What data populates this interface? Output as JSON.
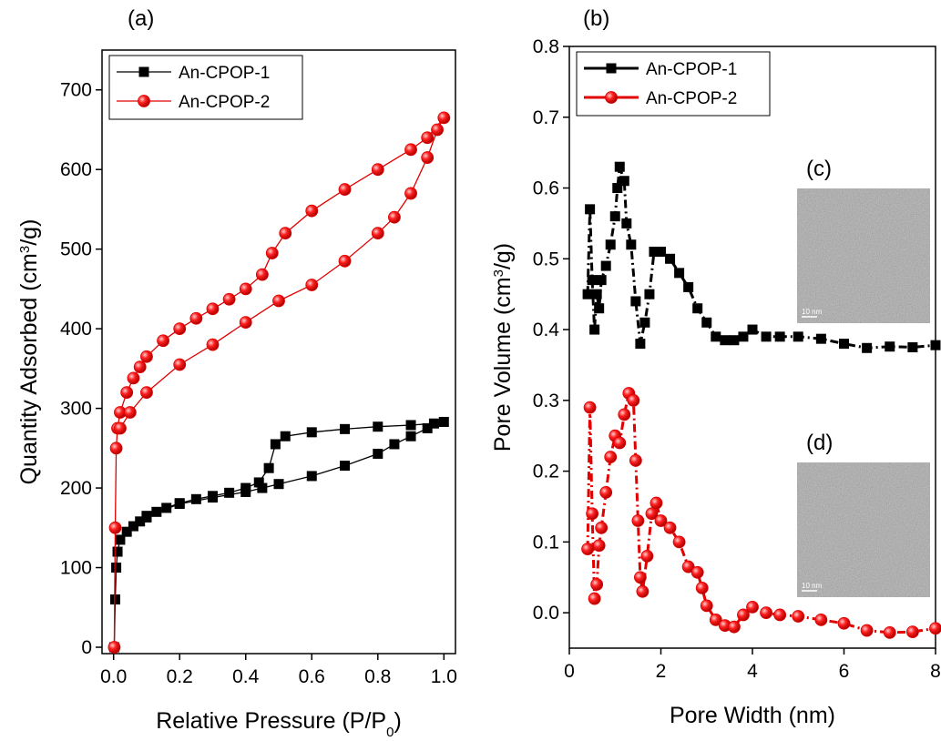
{
  "chart_data": [
    {
      "type": "line",
      "title": "(a)",
      "x_label": [
        "Relative Pressure (P/P",
        "0",
        ")"
      ],
      "y_label": [
        "Quantity Adsorbed (cm",
        "3",
        "/g)"
      ],
      "xlim": [
        -0.035,
        1.035
      ],
      "ylim": [
        -8,
        750
      ],
      "xticks": [
        {
          "value": 0,
          "label": "0.0"
        },
        0.2,
        0.4,
        0.6,
        0.8,
        {
          "value": 1,
          "label": "1.0"
        }
      ],
      "yticks": [
        0,
        100,
        200,
        300,
        400,
        500,
        600,
        700
      ],
      "legend": "upper left",
      "line_style": "solid",
      "series": [
        {
          "name": "An-CPOP-1",
          "color": "#000000",
          "marker": "square",
          "x": [
            0.002,
            0.005,
            0.008,
            0.012,
            0.02,
            0.04,
            0.06,
            0.08,
            0.1,
            0.13,
            0.16,
            0.2,
            0.25,
            0.3,
            0.35,
            0.4,
            0.44,
            0.47,
            0.49,
            0.52,
            0.6,
            0.7,
            0.8,
            0.9,
            0.97,
            1.0,
            0.95,
            0.9,
            0.85,
            0.8,
            0.7,
            0.6,
            0.5,
            0.45,
            0.4,
            0.3,
            0.2,
            0.1
          ],
          "values": [
            0,
            60,
            100,
            120,
            135,
            145,
            152,
            158,
            163,
            170,
            175,
            181,
            186,
            190,
            194,
            200,
            207,
            225,
            255,
            265,
            270,
            274,
            277,
            279,
            281,
            283,
            275,
            265,
            255,
            243,
            228,
            215,
            205,
            200,
            195,
            188,
            180,
            165
          ]
        },
        {
          "name": "An-CPOP-2",
          "color": "#e00000",
          "marker": "circle",
          "x": [
            0.002,
            0.005,
            0.008,
            0.012,
            0.02,
            0.04,
            0.06,
            0.08,
            0.1,
            0.15,
            0.2,
            0.25,
            0.3,
            0.35,
            0.4,
            0.45,
            0.48,
            0.52,
            0.6,
            0.7,
            0.8,
            0.9,
            0.95,
            1.0,
            0.98,
            0.95,
            0.9,
            0.85,
            0.8,
            0.7,
            0.6,
            0.5,
            0.4,
            0.3,
            0.2,
            0.1,
            0.05,
            0.02
          ],
          "values": [
            0,
            150,
            250,
            275,
            295,
            320,
            338,
            352,
            365,
            385,
            400,
            413,
            425,
            437,
            450,
            468,
            495,
            520,
            548,
            575,
            600,
            625,
            640,
            665,
            650,
            615,
            570,
            540,
            520,
            485,
            455,
            435,
            408,
            380,
            355,
            320,
            295,
            275
          ]
        }
      ]
    },
    {
      "type": "line",
      "title": "(b)",
      "x_label": [
        "Pore Width (nm)"
      ],
      "y_label": [
        "Pore Volume (cm",
        "3",
        "/g)"
      ],
      "xlim": [
        0,
        8
      ],
      "ylim": [
        -0.05,
        0.8
      ],
      "xticks": [
        0,
        2,
        4,
        6,
        8
      ],
      "yticks": [
        {
          "value": 0,
          "label": "0.0"
        },
        0.1,
        0.2,
        0.3,
        0.4,
        0.5,
        0.6,
        0.7,
        0.8
      ],
      "legend": "upper left",
      "line_style": "dashdot",
      "inset_labels": [
        "(c)",
        "(d)"
      ],
      "inset_scale_labels": [
        "10 nm",
        "10 nm"
      ],
      "series": [
        {
          "name": "An-CPOP-1",
          "color": "#000000",
          "marker": "square",
          "x": [
            0.4,
            0.45,
            0.5,
            0.55,
            0.6,
            0.65,
            0.7,
            0.8,
            0.9,
            1.0,
            1.05,
            1.1,
            1.2,
            1.25,
            1.35,
            1.45,
            1.55,
            1.65,
            1.75,
            1.85,
            2.0,
            2.2,
            2.4,
            2.6,
            2.8,
            3.0,
            3.2,
            3.4,
            3.6,
            3.8,
            4.0,
            4.3,
            4.6,
            5.0,
            5.5,
            6.0,
            6.5,
            7.0,
            7.5,
            8.0
          ],
          "values": [
            0.45,
            0.57,
            0.47,
            0.4,
            0.45,
            0.43,
            0.47,
            0.49,
            0.52,
            0.56,
            0.6,
            0.63,
            0.61,
            0.55,
            0.52,
            0.44,
            0.38,
            0.41,
            0.45,
            0.51,
            0.51,
            0.5,
            0.48,
            0.46,
            0.43,
            0.41,
            0.39,
            0.385,
            0.385,
            0.39,
            0.4,
            0.39,
            0.39,
            0.39,
            0.387,
            0.38,
            0.374,
            0.376,
            0.375,
            0.378
          ]
        },
        {
          "name": "An-CPOP-2",
          "color": "#e00000",
          "marker": "circle",
          "x": [
            0.4,
            0.45,
            0.5,
            0.55,
            0.6,
            0.65,
            0.7,
            0.8,
            0.9,
            1.0,
            1.1,
            1.2,
            1.3,
            1.4,
            1.45,
            1.5,
            1.55,
            1.6,
            1.7,
            1.8,
            1.9,
            2.0,
            2.2,
            2.4,
            2.6,
            2.8,
            2.9,
            3.0,
            3.2,
            3.4,
            3.6,
            3.8,
            4.0,
            4.3,
            4.6,
            5.0,
            5.5,
            6.0,
            6.5,
            7.0,
            7.5,
            8.0
          ],
          "values": [
            0.09,
            0.29,
            0.14,
            0.02,
            0.04,
            0.095,
            0.12,
            0.17,
            0.22,
            0.25,
            0.24,
            0.28,
            0.31,
            0.3,
            0.215,
            0.13,
            0.05,
            0.03,
            0.08,
            0.14,
            0.155,
            0.13,
            0.12,
            0.1,
            0.065,
            0.057,
            0.035,
            0.01,
            -0.01,
            -0.018,
            -0.02,
            -0.003,
            0.008,
            0,
            -0.003,
            -0.005,
            -0.01,
            -0.015,
            -0.025,
            -0.028,
            -0.027,
            -0.022
          ]
        }
      ]
    }
  ]
}
